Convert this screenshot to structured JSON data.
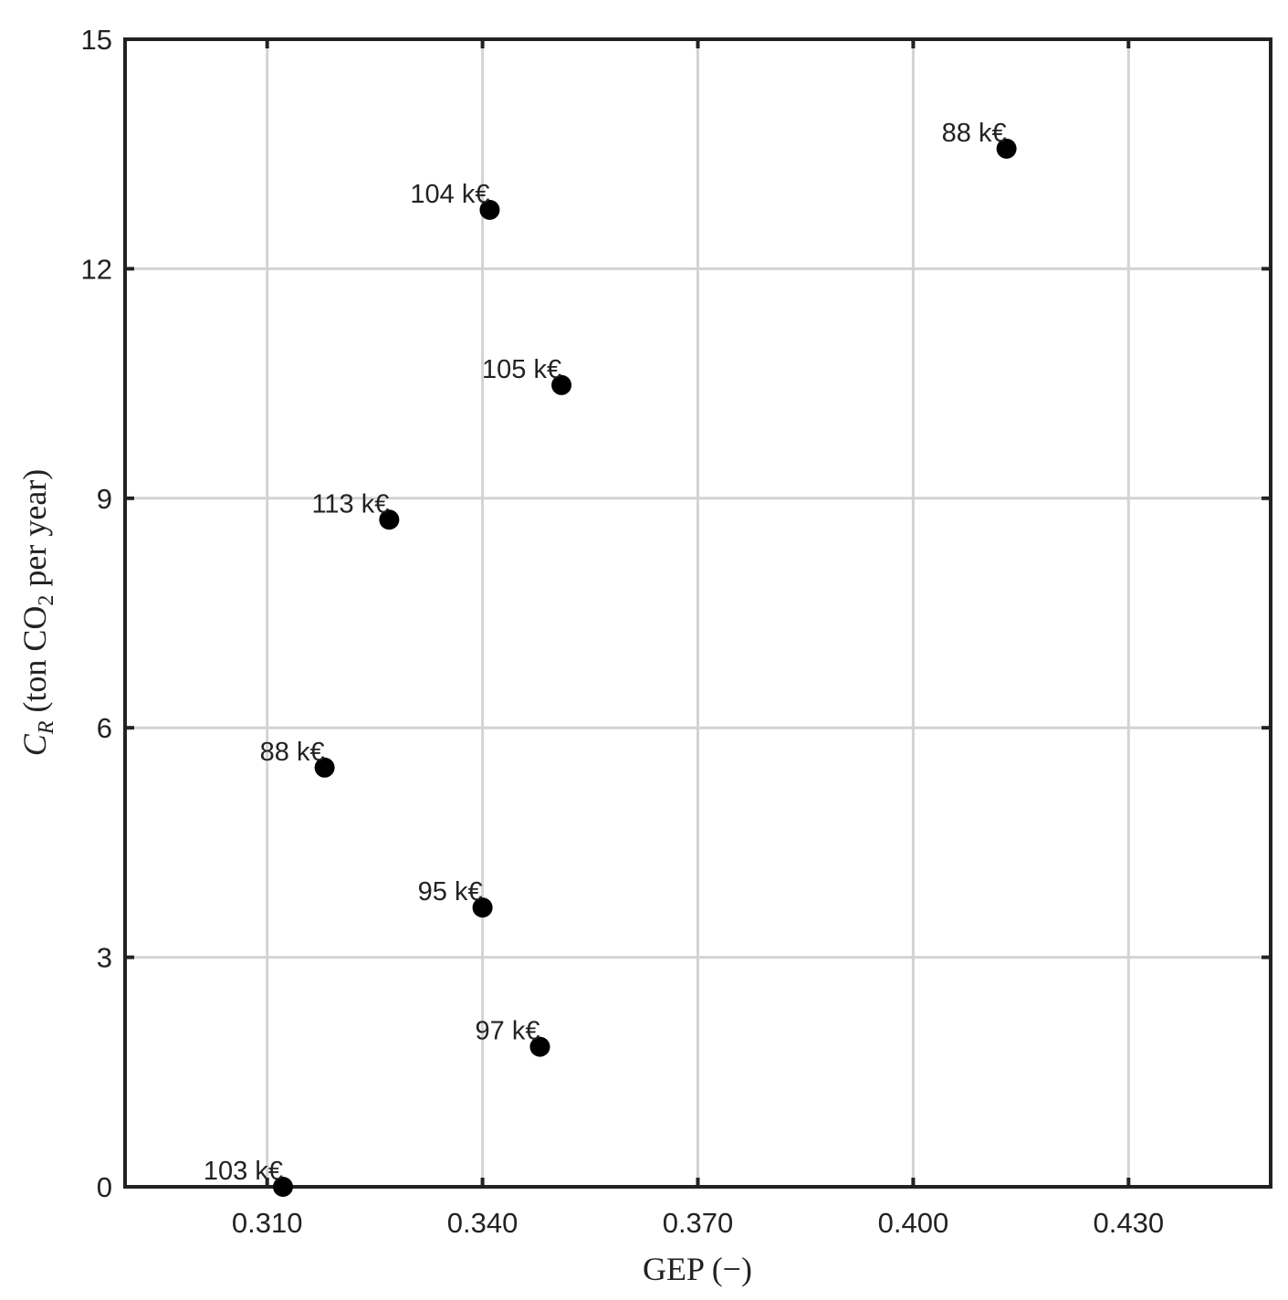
{
  "chart_data": {
    "type": "scatter",
    "xlabel": "GEP (−)",
    "ylabel": [
      "C",
      "R",
      " (ton CO",
      "2",
      " per year)"
    ],
    "x": [
      0.3122,
      0.348,
      0.34,
      0.318,
      0.327,
      0.351,
      0.341,
      0.413
    ],
    "values": [
      0,
      1.83,
      3.65,
      5.48,
      8.72,
      10.48,
      12.77,
      13.57
    ],
    "point_labels": [
      "103 k€",
      "97 k€",
      "95 k€",
      "88 k€",
      "113 k€",
      "105 k€",
      "104 k€",
      "88 k€"
    ],
    "color": "#000000",
    "xlim": [
      0.2902,
      0.4498
    ],
    "ylim": [
      0,
      15
    ],
    "xticks": [
      {
        "value": 0.31,
        "label": "0.310"
      },
      {
        "value": 0.34,
        "label": "0.340"
      },
      {
        "value": 0.37,
        "label": "0.370"
      },
      {
        "value": 0.4,
        "label": "0.400"
      },
      {
        "value": 0.43,
        "label": "0.430"
      }
    ],
    "yticks": [
      0,
      3,
      6,
      9,
      12,
      15
    ],
    "grid": true
  }
}
